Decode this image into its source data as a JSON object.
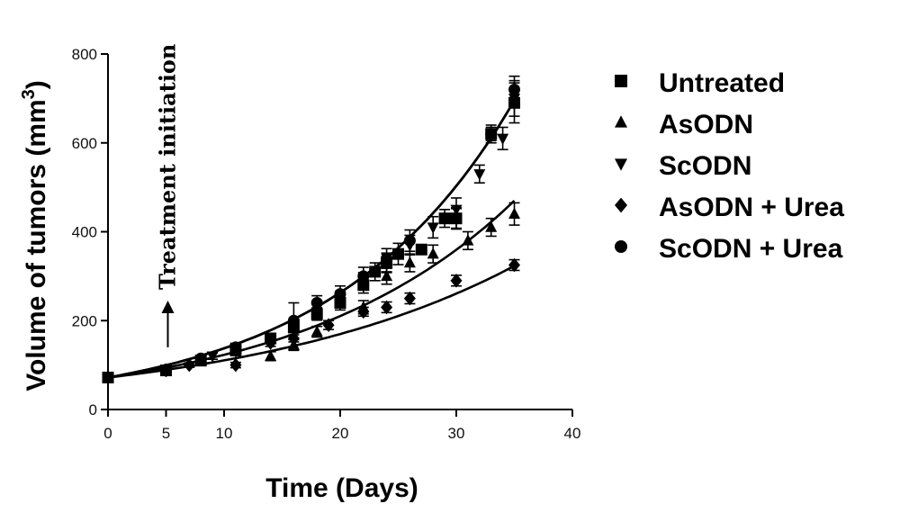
{
  "chart_data": {
    "type": "scatter",
    "xlabel": "Time (Days)",
    "ylabel": "Volume of tumors (mm",
    "ylabel_sup": "3",
    "ylabel_close": ")",
    "xlim": [
      0,
      40
    ],
    "ylim": [
      0,
      800
    ],
    "x_ticks": [
      0,
      5,
      10,
      20,
      30,
      40
    ],
    "y_ticks": [
      0,
      200,
      400,
      600,
      800
    ],
    "grid": false,
    "legend_position": "right",
    "annotation": {
      "text": "Treatment initiation",
      "x": 5,
      "y_from": 140,
      "y_to": 245
    },
    "series": [
      {
        "name": "Untreated",
        "marker": "square",
        "x": [
          0,
          5,
          8,
          11,
          14,
          16,
          18,
          20,
          22,
          23,
          24,
          25,
          27,
          29,
          30,
          33,
          35
        ],
        "y": [
          72,
          88,
          110,
          135,
          160,
          185,
          215,
          240,
          280,
          310,
          330,
          350,
          360,
          430,
          430,
          620,
          690
        ],
        "err": [
          0,
          5,
          6,
          8,
          10,
          12,
          14,
          16,
          18,
          20,
          22,
          24,
          10,
          20,
          22,
          15,
          45
        ],
        "fit": {
          "a": 72,
          "k": 0.0648
        }
      },
      {
        "name": "AsODN",
        "marker": "triangle-up",
        "x": [
          0,
          5,
          11,
          14,
          16,
          18,
          22,
          24,
          26,
          28,
          31,
          33,
          35
        ],
        "y": [
          72,
          90,
          130,
          120,
          145,
          175,
          230,
          300,
          330,
          350,
          380,
          410,
          440
        ],
        "err": [
          0,
          5,
          8,
          10,
          12,
          12,
          15,
          18,
          20,
          20,
          20,
          20,
          25
        ],
        "fit": {
          "a": 72,
          "k": 0.0536
        }
      },
      {
        "name": "ScODN",
        "marker": "triangle-down",
        "x": [
          0,
          5,
          9,
          11,
          14,
          16,
          18,
          20,
          22,
          24,
          26,
          28,
          30,
          32,
          34,
          35
        ],
        "y": [
          72,
          90,
          120,
          130,
          160,
          190,
          230,
          250,
          290,
          330,
          370,
          410,
          450,
          530,
          610,
          700
        ],
        "err": [
          0,
          5,
          7,
          8,
          10,
          12,
          14,
          16,
          18,
          20,
          22,
          24,
          26,
          20,
          25,
          40
        ],
        "fit": {
          "a": 72,
          "k": 0.0648
        }
      },
      {
        "name": "AsODN + Urea",
        "marker": "diamond",
        "x": [
          0,
          5,
          7,
          11,
          14,
          16,
          19,
          22,
          24,
          26,
          30,
          35
        ],
        "y": [
          72,
          88,
          100,
          100,
          150,
          160,
          190,
          220,
          230,
          250,
          290,
          325
        ],
        "err": [
          0,
          4,
          5,
          6,
          8,
          8,
          10,
          10,
          12,
          12,
          12,
          12
        ],
        "fit": {
          "a": 72,
          "k": 0.0429
        }
      },
      {
        "name": "ScODN + Urea",
        "marker": "circle",
        "x": [
          0,
          5,
          8,
          11,
          14,
          16,
          18,
          20,
          22,
          24,
          26,
          30,
          33,
          35
        ],
        "y": [
          72,
          90,
          115,
          140,
          160,
          200,
          240,
          260,
          300,
          340,
          380,
          430,
          620,
          720
        ],
        "err": [
          0,
          5,
          7,
          9,
          11,
          40,
          16,
          18,
          20,
          22,
          24,
          24,
          20,
          30
        ],
        "fit": {
          "a": 72,
          "k": 0.0648
        }
      }
    ]
  }
}
